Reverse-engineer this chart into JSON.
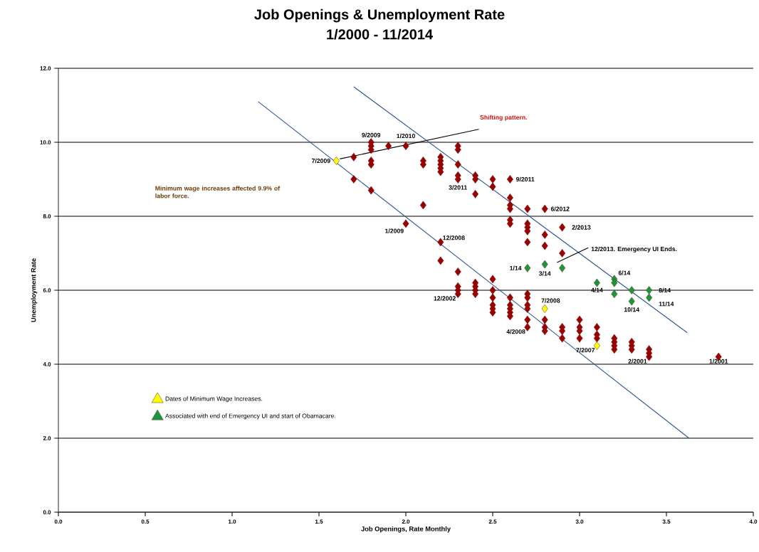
{
  "chart_data": {
    "type": "scatter",
    "title": "Job Openings & Unemployment Rate",
    "subtitle": "1/2000 - 11/2014",
    "xlabel": "Job Openings, Rate Monthly",
    "ylabel": "Unemployment Rate",
    "xlim": [
      0,
      4
    ],
    "ylim": [
      0,
      12
    ],
    "xticks": [
      {
        "value": 0,
        "label": "0.0"
      },
      {
        "value": 0.5,
        "label": "0.5"
      },
      {
        "value": 1,
        "label": "1.0"
      },
      {
        "value": 1.5,
        "label": "1.5"
      },
      {
        "value": 2,
        "label": "2.0"
      },
      {
        "value": 2.5,
        "label": "2.5"
      },
      {
        "value": 3,
        "label": "3.0"
      },
      {
        "value": 3.5,
        "label": "3.5"
      },
      {
        "value": 4,
        "label": "4.0"
      }
    ],
    "yticks": [
      {
        "value": 0,
        "label": "0.0"
      },
      {
        "value": 2,
        "label": "2.0"
      },
      {
        "value": 4,
        "label": "4.0"
      },
      {
        "value": 6,
        "label": "6.0"
      },
      {
        "value": 8,
        "label": "8.0"
      },
      {
        "value": 10,
        "label": "10.0"
      },
      {
        "value": 12,
        "label": "12.0"
      }
    ],
    "grid": "y",
    "marker": "diamond",
    "legend": "bottom left",
    "series": [
      {
        "color": "#990000",
        "x": [
          1.7,
          1.7,
          1.8,
          1.8,
          1.8,
          1.8,
          1.8,
          1.8,
          1.9,
          2.0,
          2.0,
          2.1,
          2.1,
          2.1,
          2.2,
          2.2,
          2.2,
          2.2,
          2.2,
          2.2,
          2.2,
          2.3,
          2.3,
          2.3,
          2.3,
          2.3,
          2.3,
          2.3,
          2.3,
          2.3,
          2.4,
          2.4,
          2.4,
          2.4,
          2.4,
          2.4,
          2.4,
          2.5,
          2.5,
          2.5,
          2.5,
          2.5,
          2.5,
          2.5,
          2.5,
          2.6,
          2.6,
          2.6,
          2.6,
          2.6,
          2.6,
          2.6,
          2.6,
          2.6,
          2.6,
          2.6,
          2.7,
          2.7,
          2.7,
          2.7,
          2.7,
          2.7,
          2.7,
          2.7,
          2.7,
          2.7,
          2.7,
          2.8,
          2.8,
          2.8,
          2.8,
          2.8,
          2.8,
          2.9,
          2.9,
          2.9,
          2.9,
          2.9,
          3.0,
          3.0,
          3.0,
          3.0,
          3.1,
          3.1,
          3.1,
          3.2,
          3.2,
          3.2,
          3.2,
          3.3,
          3.3,
          3.3,
          3.4,
          3.4,
          3.4,
          3.8
        ],
        "values": [
          9.6,
          9.0,
          10.0,
          9.9,
          9.8,
          9.5,
          9.4,
          8.7,
          9.9,
          9.9,
          7.8,
          9.5,
          9.4,
          8.3,
          9.6,
          9.5,
          9.4,
          9.3,
          9.2,
          7.3,
          6.8,
          9.9,
          9.8,
          9.4,
          9.1,
          9.0,
          6.5,
          6.1,
          6.0,
          5.9,
          9.1,
          9.0,
          8.6,
          6.2,
          6.1,
          6.0,
          5.9,
          9.0,
          8.8,
          6.3,
          6.0,
          5.8,
          5.6,
          5.5,
          5.4,
          9.0,
          8.5,
          8.3,
          8.2,
          7.9,
          7.8,
          5.8,
          5.6,
          5.5,
          5.4,
          5.3,
          8.2,
          7.8,
          7.7,
          7.6,
          7.3,
          5.9,
          5.8,
          5.6,
          5.5,
          5.2,
          5.0,
          8.2,
          7.5,
          7.2,
          5.2,
          5.0,
          4.9,
          7.7,
          7.0,
          5.0,
          4.9,
          4.7,
          5.2,
          5.0,
          4.9,
          4.7,
          5.0,
          4.8,
          4.7,
          4.7,
          4.6,
          4.5,
          4.4,
          4.6,
          4.5,
          4.4,
          4.4,
          4.3,
          4.2,
          4.2
        ]
      },
      {
        "name": "Dates of Minimum Wage Increases.",
        "color": "#ffff00",
        "x": [
          1.6,
          2.8,
          3.1
        ],
        "values": [
          9.5,
          5.5,
          4.5
        ]
      },
      {
        "name": "Associated with end of Emergency UI and start of Obamacare.",
        "color": "#1a9641",
        "x": [
          2.7,
          2.8,
          2.9,
          3.1,
          3.2,
          3.2,
          3.2,
          3.3,
          3.3,
          3.4,
          3.4
        ],
        "values": [
          6.6,
          6.7,
          6.6,
          6.2,
          6.3,
          6.2,
          5.9,
          6.0,
          5.7,
          6.0,
          5.8
        ]
      },
      {
        "type": "line",
        "marker": "none",
        "color": "#2e5597",
        "x": [
          3.63,
          1.15
        ],
        "values": [
          2.0,
          11.1
        ]
      },
      {
        "type": "line",
        "marker": "none",
        "color": "#2e5597",
        "x": [
          1.7,
          3.62
        ],
        "values": [
          11.5,
          4.85
        ]
      },
      {
        "type": "line",
        "marker": "none",
        "color": "#000000",
        "x": [
          1.62,
          2.42
        ],
        "values": [
          9.55,
          10.35
        ]
      },
      {
        "type": "line",
        "marker": "none",
        "color": "#000000",
        "x": [
          2.87,
          3.05
        ],
        "values": [
          6.75,
          7.15
        ]
      }
    ],
    "annotations": [
      "Shifting pattern.",
      "Minimum wage increases affected 9.9% of labor force.",
      {
        "text": "9/2009",
        "x": 1.8,
        "y": 10.0
      },
      {
        "text": "1/2010",
        "x": 2.0,
        "y": 9.9
      },
      {
        "text": "7/2009",
        "x": 1.6,
        "y": 9.5
      },
      {
        "text": "9/2011",
        "x": 2.6,
        "y": 9.0
      },
      {
        "text": "3/2011",
        "x": 2.3,
        "y": 9.0
      },
      {
        "text": "6/2012",
        "x": 2.8,
        "y": 8.2
      },
      {
        "text": "2/2013",
        "x": 2.9,
        "y": 7.7
      },
      {
        "text": "1/2009",
        "x": 2.0,
        "y": 7.8
      },
      {
        "text": "12/2008",
        "x": 2.2,
        "y": 7.3
      },
      "12/2013. Emergency UI Ends.",
      {
        "text": "1/14",
        "x": 2.7,
        "y": 6.6
      },
      {
        "text": "3/14",
        "x": 2.8,
        "y": 6.7
      },
      {
        "text": "4/14",
        "x": 3.1,
        "y": 6.2
      },
      {
        "text": "6/14",
        "x": 3.2,
        "y": 6.3
      },
      {
        "text": "8/14",
        "x": 3.4,
        "y": 6.0
      },
      {
        "text": "10/14",
        "x": 3.3,
        "y": 5.7
      },
      {
        "text": "11/14",
        "x": 3.4,
        "y": 5.8
      },
      {
        "text": "7/2008",
        "x": 2.8,
        "y": 5.5
      },
      {
        "text": "12/2002",
        "x": 2.3,
        "y": 5.9
      },
      {
        "text": "4/2008",
        "x": 2.7,
        "y": 5.0
      },
      {
        "text": "7/2007",
        "x": 3.1,
        "y": 4.5
      },
      {
        "text": "2/2001",
        "x": 3.4,
        "y": 4.2
      },
      {
        "text": "1/2001",
        "x": 3.8,
        "y": 4.2
      }
    ]
  }
}
